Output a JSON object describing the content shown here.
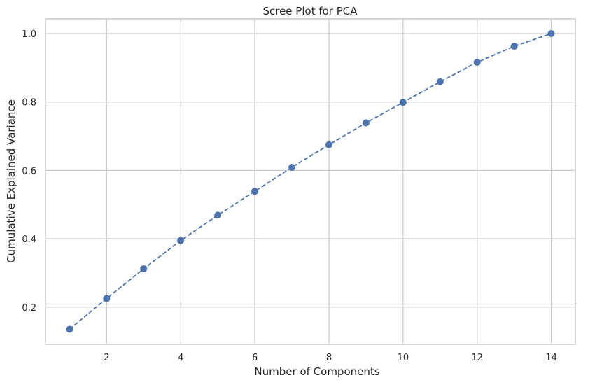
{
  "chart_data": {
    "type": "line",
    "title": "Scree Plot for PCA",
    "xlabel": "Number of Components",
    "ylabel": "Cumulative Explained Variance",
    "xlim": [
      0.35,
      14.65
    ],
    "ylim": [
      0.091,
      1.043
    ],
    "xticks": [
      2,
      4,
      6,
      8,
      10,
      12,
      14
    ],
    "yticks": [
      0.2,
      0.4,
      0.6,
      0.8,
      1.0
    ],
    "ytick_labels": [
      "0.2",
      "0.4",
      "0.6",
      "0.8",
      "1.0"
    ],
    "grid": true,
    "line_style": "dashed",
    "marker": "circle",
    "color": "#4c72b0",
    "x": [
      1,
      2,
      3,
      4,
      5,
      6,
      7,
      8,
      9,
      10,
      11,
      12,
      13,
      14
    ],
    "y": [
      0.135,
      0.225,
      0.312,
      0.395,
      0.469,
      0.539,
      0.609,
      0.675,
      0.739,
      0.799,
      0.859,
      0.916,
      0.963,
      1.0
    ]
  }
}
